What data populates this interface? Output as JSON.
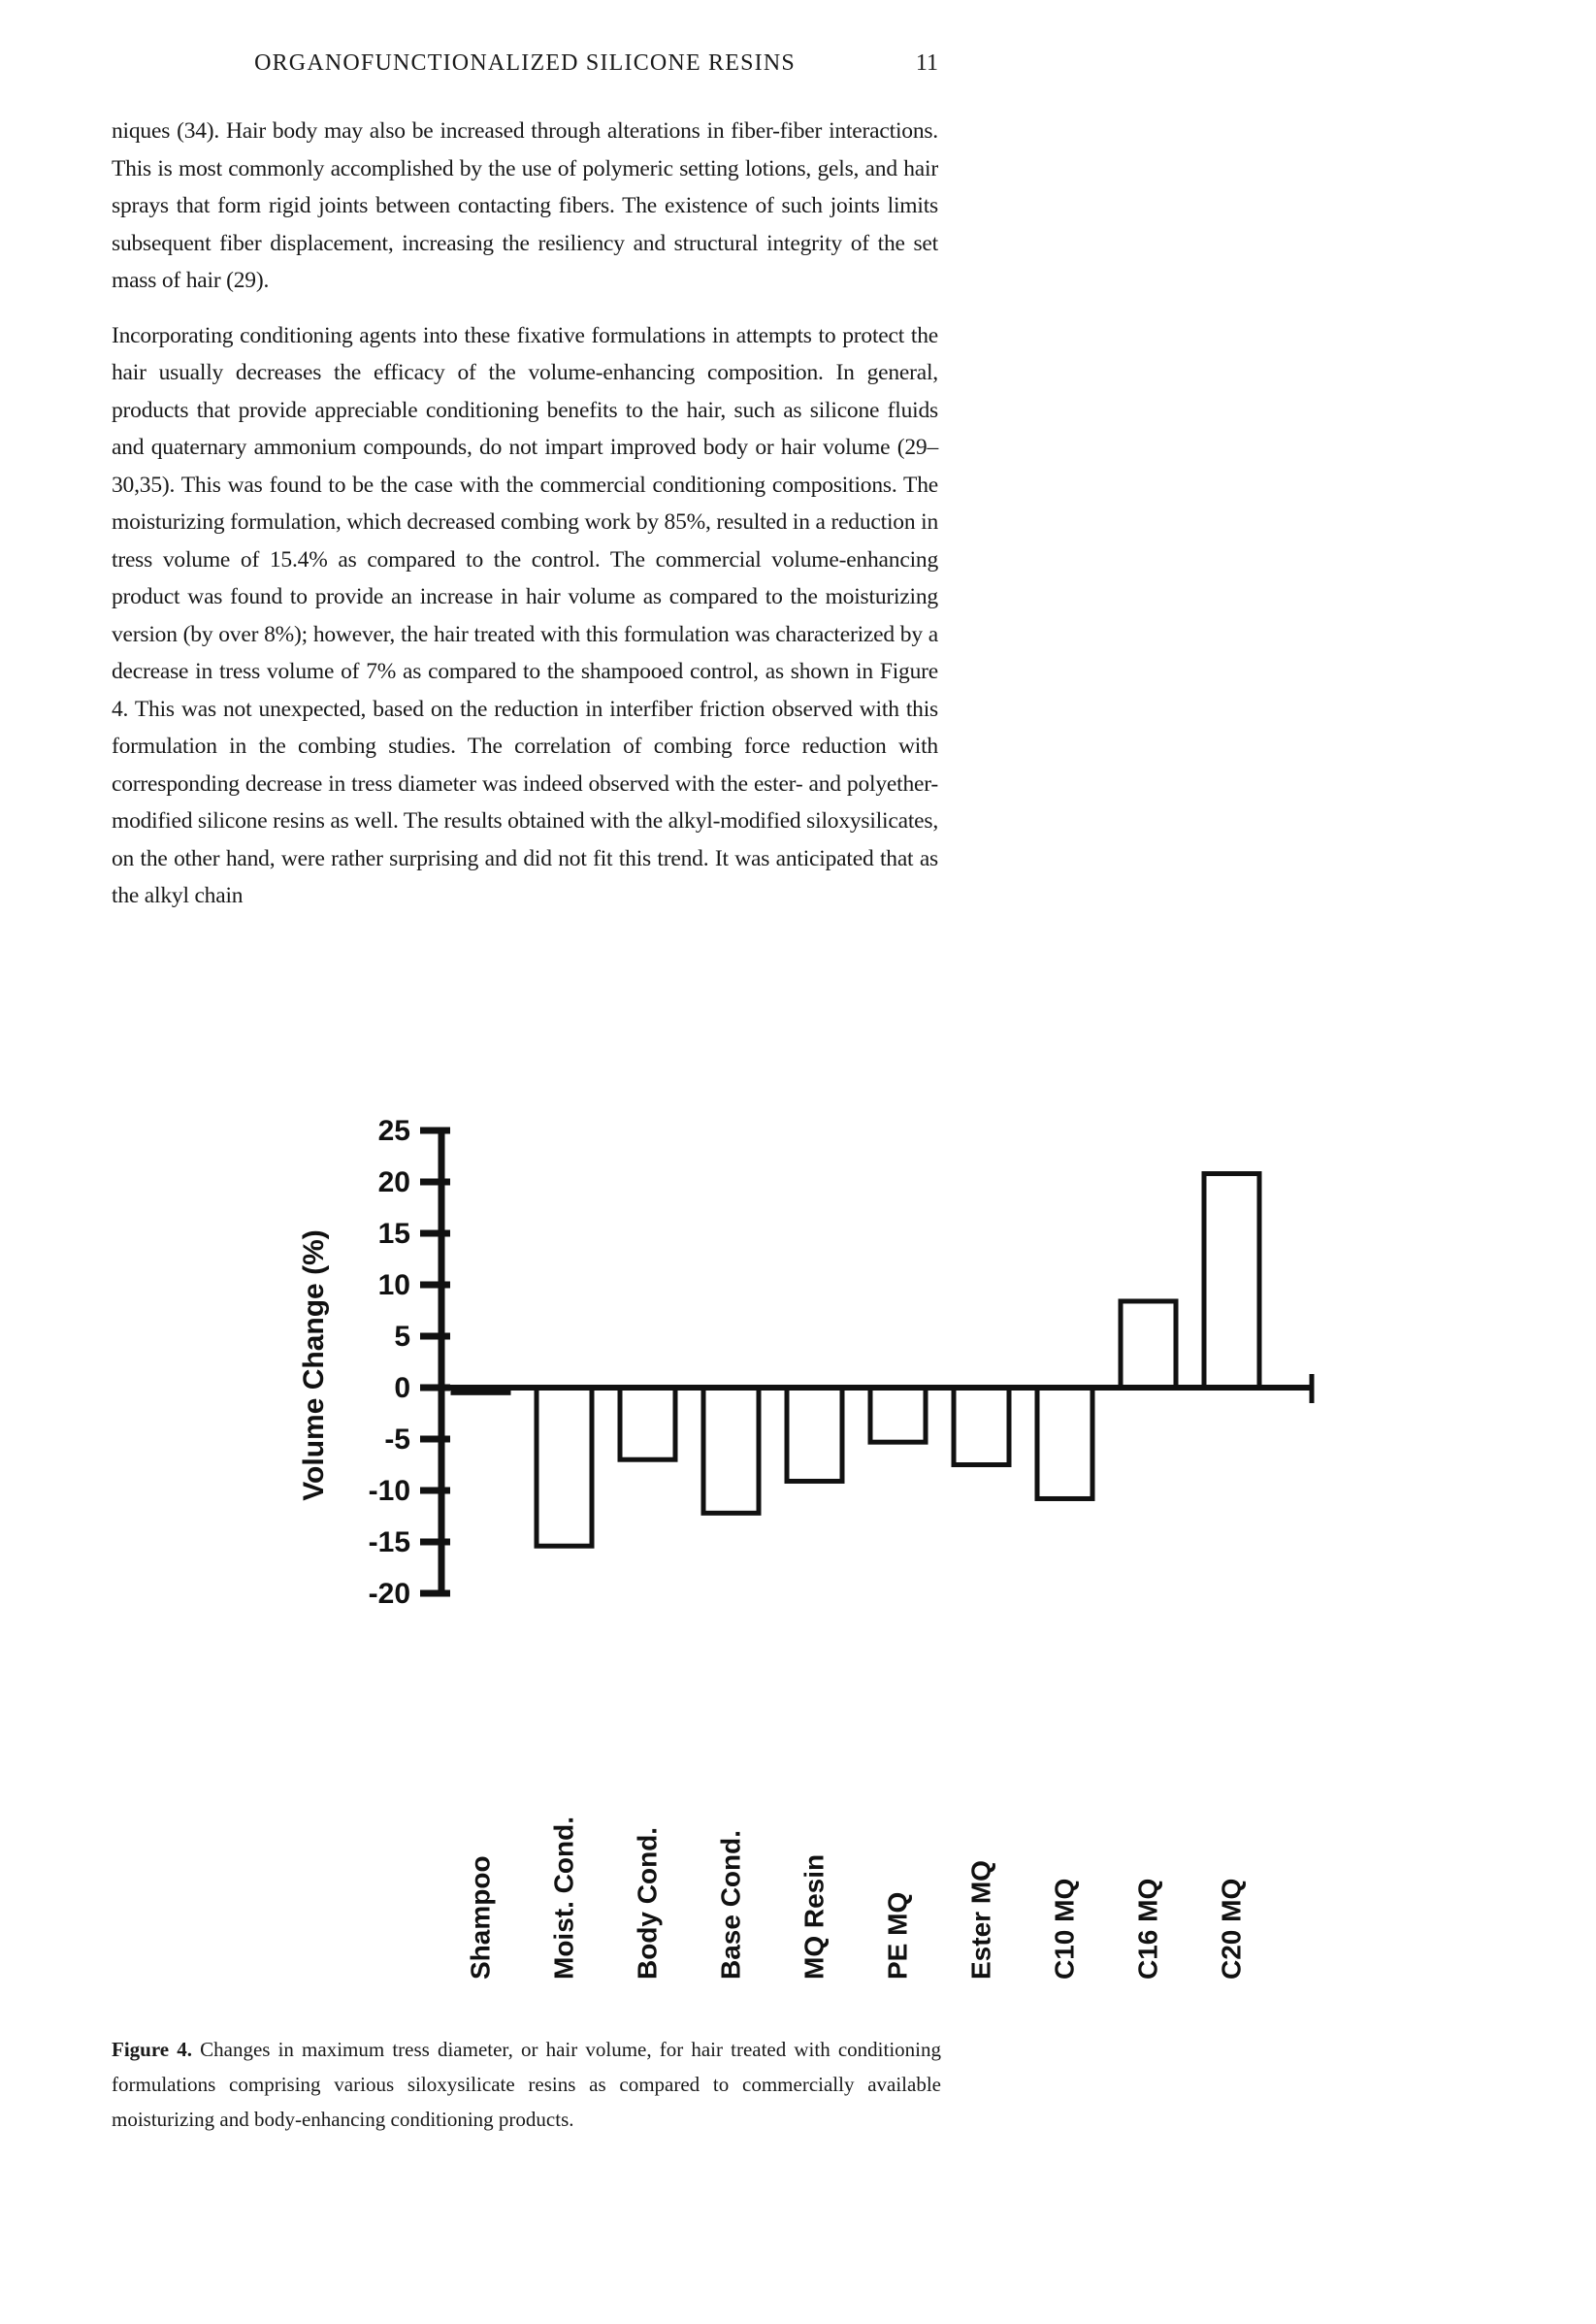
{
  "header": {
    "title": "ORGANOFUNCTIONALIZED SILICONE RESINS",
    "page_number": "11"
  },
  "paragraphs": [
    "niques (34). Hair body may also be increased through alterations in fiber-fiber interactions. This is most commonly accomplished by the use of polymeric setting lotions, gels, and hair sprays that form rigid joints between contacting fibers. The existence of such joints limits subsequent fiber displacement, increasing the resiliency and structural integrity of the set mass of hair (29).",
    "Incorporating conditioning agents into these fixative formulations in attempts to protect the hair usually decreases the efficacy of the volume-enhancing composition. In general, products that provide appreciable conditioning benefits to the hair, such as silicone fluids and quaternary ammonium compounds, do not impart improved body or hair volume (29–30,35). This was found to be the case with the commercial conditioning compositions. The moisturizing formulation, which decreased combing work by 85%, resulted in a reduction in tress volume of 15.4% as compared to the control. The commercial volume-enhancing product was found to provide an increase in hair volume as compared to the moisturizing version (by over 8%); however, the hair treated with this formulation was characterized by a decrease in tress volume of 7% as compared to the shampooed control, as shown in Figure 4. This was not unexpected, based on the reduction in interfiber friction observed with this formulation in the combing studies. The correlation of combing force reduction with corresponding decrease in tress diameter was indeed observed with the ester- and polyether-modified silicone resins as well. The results obtained with the alkyl-modified siloxysilicates, on the other hand, were rather surprising and did not fit this trend. It was anticipated that as the alkyl chain"
  ],
  "figure": {
    "caption_label": "Figure 4.",
    "caption_text": "Changes in maximum tress diameter, or hair volume, for hair treated with conditioning formulations comprising various siloxysilicate resins as compared to commercially available moisturizing and body-enhancing conditioning products."
  },
  "chart_data": {
    "type": "bar",
    "categories": [
      "Shampoo",
      "Moist. Cond.",
      "Body Cond.",
      "Base Cond.",
      "MQ Resin",
      "PE MQ",
      "Ester MQ",
      "C10 MQ",
      "C16 MQ",
      "C20 MQ"
    ],
    "values": [
      -0.5,
      -15.4,
      -7.0,
      -12.2,
      -9.1,
      -5.3,
      -7.5,
      -10.8,
      8.4,
      20.8
    ],
    "title": "",
    "xlabel": "",
    "ylabel": "Volume Change (%)",
    "yticks": [
      25,
      20,
      15,
      10,
      5,
      0,
      -5,
      -10,
      -15,
      -20
    ],
    "ylim": [
      -20,
      25
    ],
    "grid": false,
    "legend": false,
    "bar_fill": "#ffffff",
    "axis_color": "#111111"
  }
}
